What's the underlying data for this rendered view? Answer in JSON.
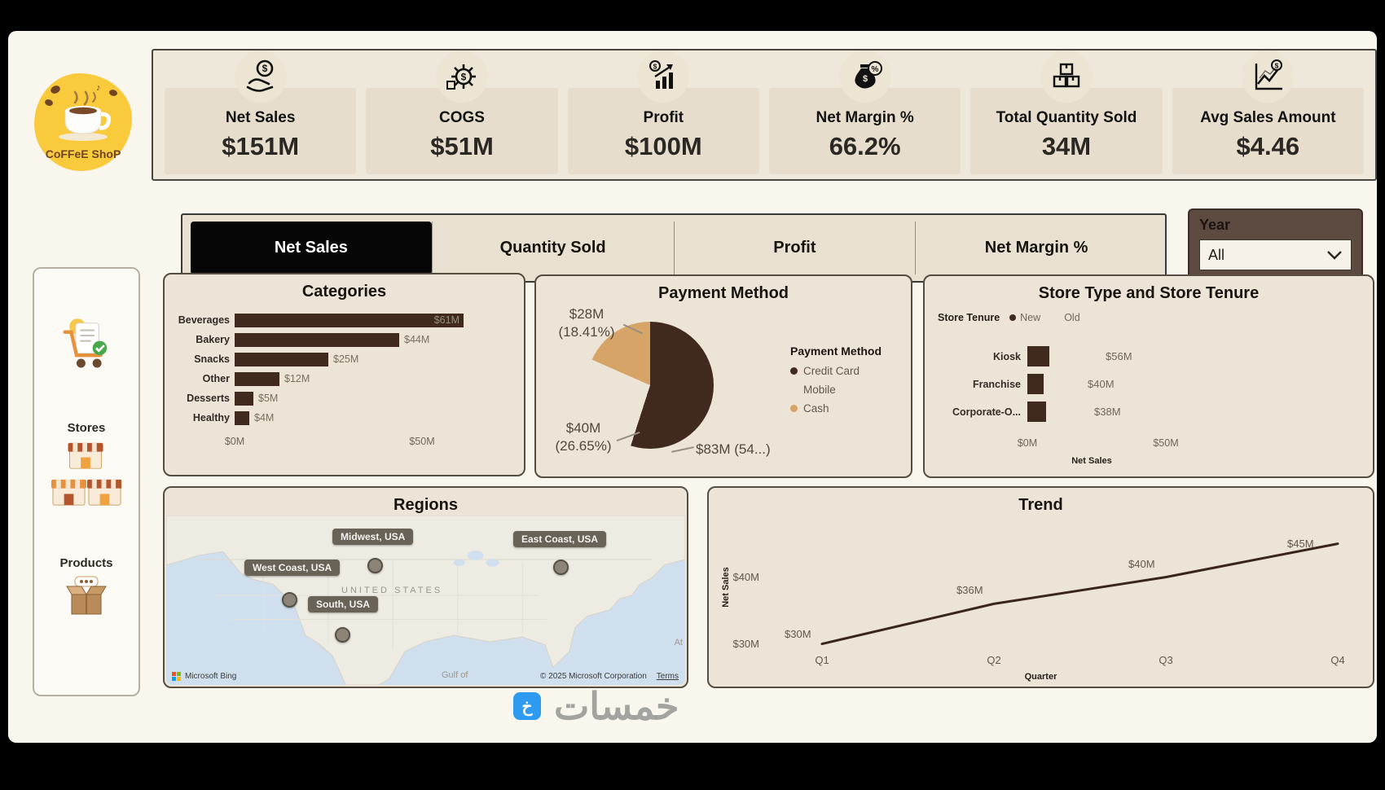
{
  "watermark": {
    "brand": "خمسات"
  },
  "logo": {
    "title": "CoFFeE ShoP"
  },
  "kpi_band": {
    "cards": [
      {
        "label": "Net Sales",
        "value": "$151M",
        "icon": "hand-coin-icon"
      },
      {
        "label": "COGS",
        "value": "$51M",
        "icon": "gear-dollar-icon"
      },
      {
        "label": "Profit",
        "value": "$100M",
        "icon": "profit-growth-icon"
      },
      {
        "label": "Net Margin %",
        "value": "66.2%",
        "icon": "money-bag-percent-icon"
      },
      {
        "label": "Total Quantity Sold",
        "value": "34M",
        "icon": "boxes-icon"
      },
      {
        "label": "Avg Sales Amount",
        "value": "$4.46",
        "icon": "sales-trend-icon"
      }
    ]
  },
  "metric_tabs": [
    {
      "label": "Net Sales",
      "selected": true
    },
    {
      "label": "Quantity Sold",
      "selected": false
    },
    {
      "label": "Profit",
      "selected": false
    },
    {
      "label": "Net Margin %",
      "selected": false
    }
  ],
  "year_filter": {
    "label": "Year",
    "selected_value": "All"
  },
  "sidebar": {
    "stores_label": "Stores",
    "products_label": "Products"
  },
  "chart_data": [
    {
      "type": "bar",
      "title": "Categories",
      "orientation": "horizontal",
      "categories": [
        "Beverages",
        "Bakery",
        "Snacks",
        "Other",
        "Desserts",
        "Healthy"
      ],
      "values": [
        61,
        44,
        25,
        12,
        5,
        4
      ],
      "value_labels": [
        "$61M",
        "$44M",
        "$25M",
        "$12M",
        "$5M",
        "$4M"
      ],
      "x_ticks": [
        "$0M",
        "$50M"
      ],
      "xlim": [
        0,
        61
      ],
      "bar_color": "#40291f"
    },
    {
      "type": "pie",
      "title": "Payment Method",
      "legend_title": "Payment Method",
      "slices": [
        {
          "label": "Credit Card",
          "value": 83,
          "pct": 54.94,
          "callout": "$83M (54...)",
          "color": "#40291f"
        },
        {
          "label": "Mobile",
          "value": 40,
          "pct": 26.65,
          "callout_line1": "$40M",
          "callout_line2": "(26.65%)",
          "color": "#ece4d6"
        },
        {
          "label": "Cash",
          "value": 28,
          "pct": 18.41,
          "callout_line1": "$28M",
          "callout_line2": "(18.41%)",
          "color": "#d7a468"
        }
      ]
    },
    {
      "type": "bar",
      "title": "Store Type and Store Tenure",
      "legend_title": "Store Tenure",
      "legend": [
        {
          "label": "New",
          "color": "#40291f"
        },
        {
          "label": "Old",
          "color": "#ece4d6"
        }
      ],
      "categories": [
        "Kiosk",
        "Franchise",
        "Corporate-O..."
      ],
      "values": [
        56,
        40,
        38
      ],
      "value_labels": [
        "$56M",
        "$40M",
        "$38M"
      ],
      "x_ticks": [
        "$0M",
        "$50M"
      ],
      "xlabel": "Net Sales"
    },
    {
      "type": "map",
      "title": "Regions",
      "country_label": "UNITED STATES",
      "pins": [
        {
          "label": "Midwest, USA"
        },
        {
          "label": "East Coast, USA"
        },
        {
          "label": "West Coast, USA"
        },
        {
          "label": "South, USA"
        }
      ],
      "water_labels": [
        "Gulf of",
        "At"
      ],
      "provider": "Microsoft Bing",
      "copyright": "© 2025 Microsoft Corporation",
      "terms_label": "Terms"
    },
    {
      "type": "line",
      "title": "Trend",
      "categories": [
        "Q1",
        "Q2",
        "Q3",
        "Q4"
      ],
      "values": [
        30,
        36,
        40,
        45
      ],
      "value_labels": [
        "$30M",
        "$36M",
        "$40M",
        "$45M"
      ],
      "y_ticks": [
        "$30M",
        "$40M"
      ],
      "xlabel": "Quarter",
      "ylabel": "Net Sales",
      "ylim": [
        28,
        47
      ],
      "line_color": "#3a251c"
    }
  ]
}
